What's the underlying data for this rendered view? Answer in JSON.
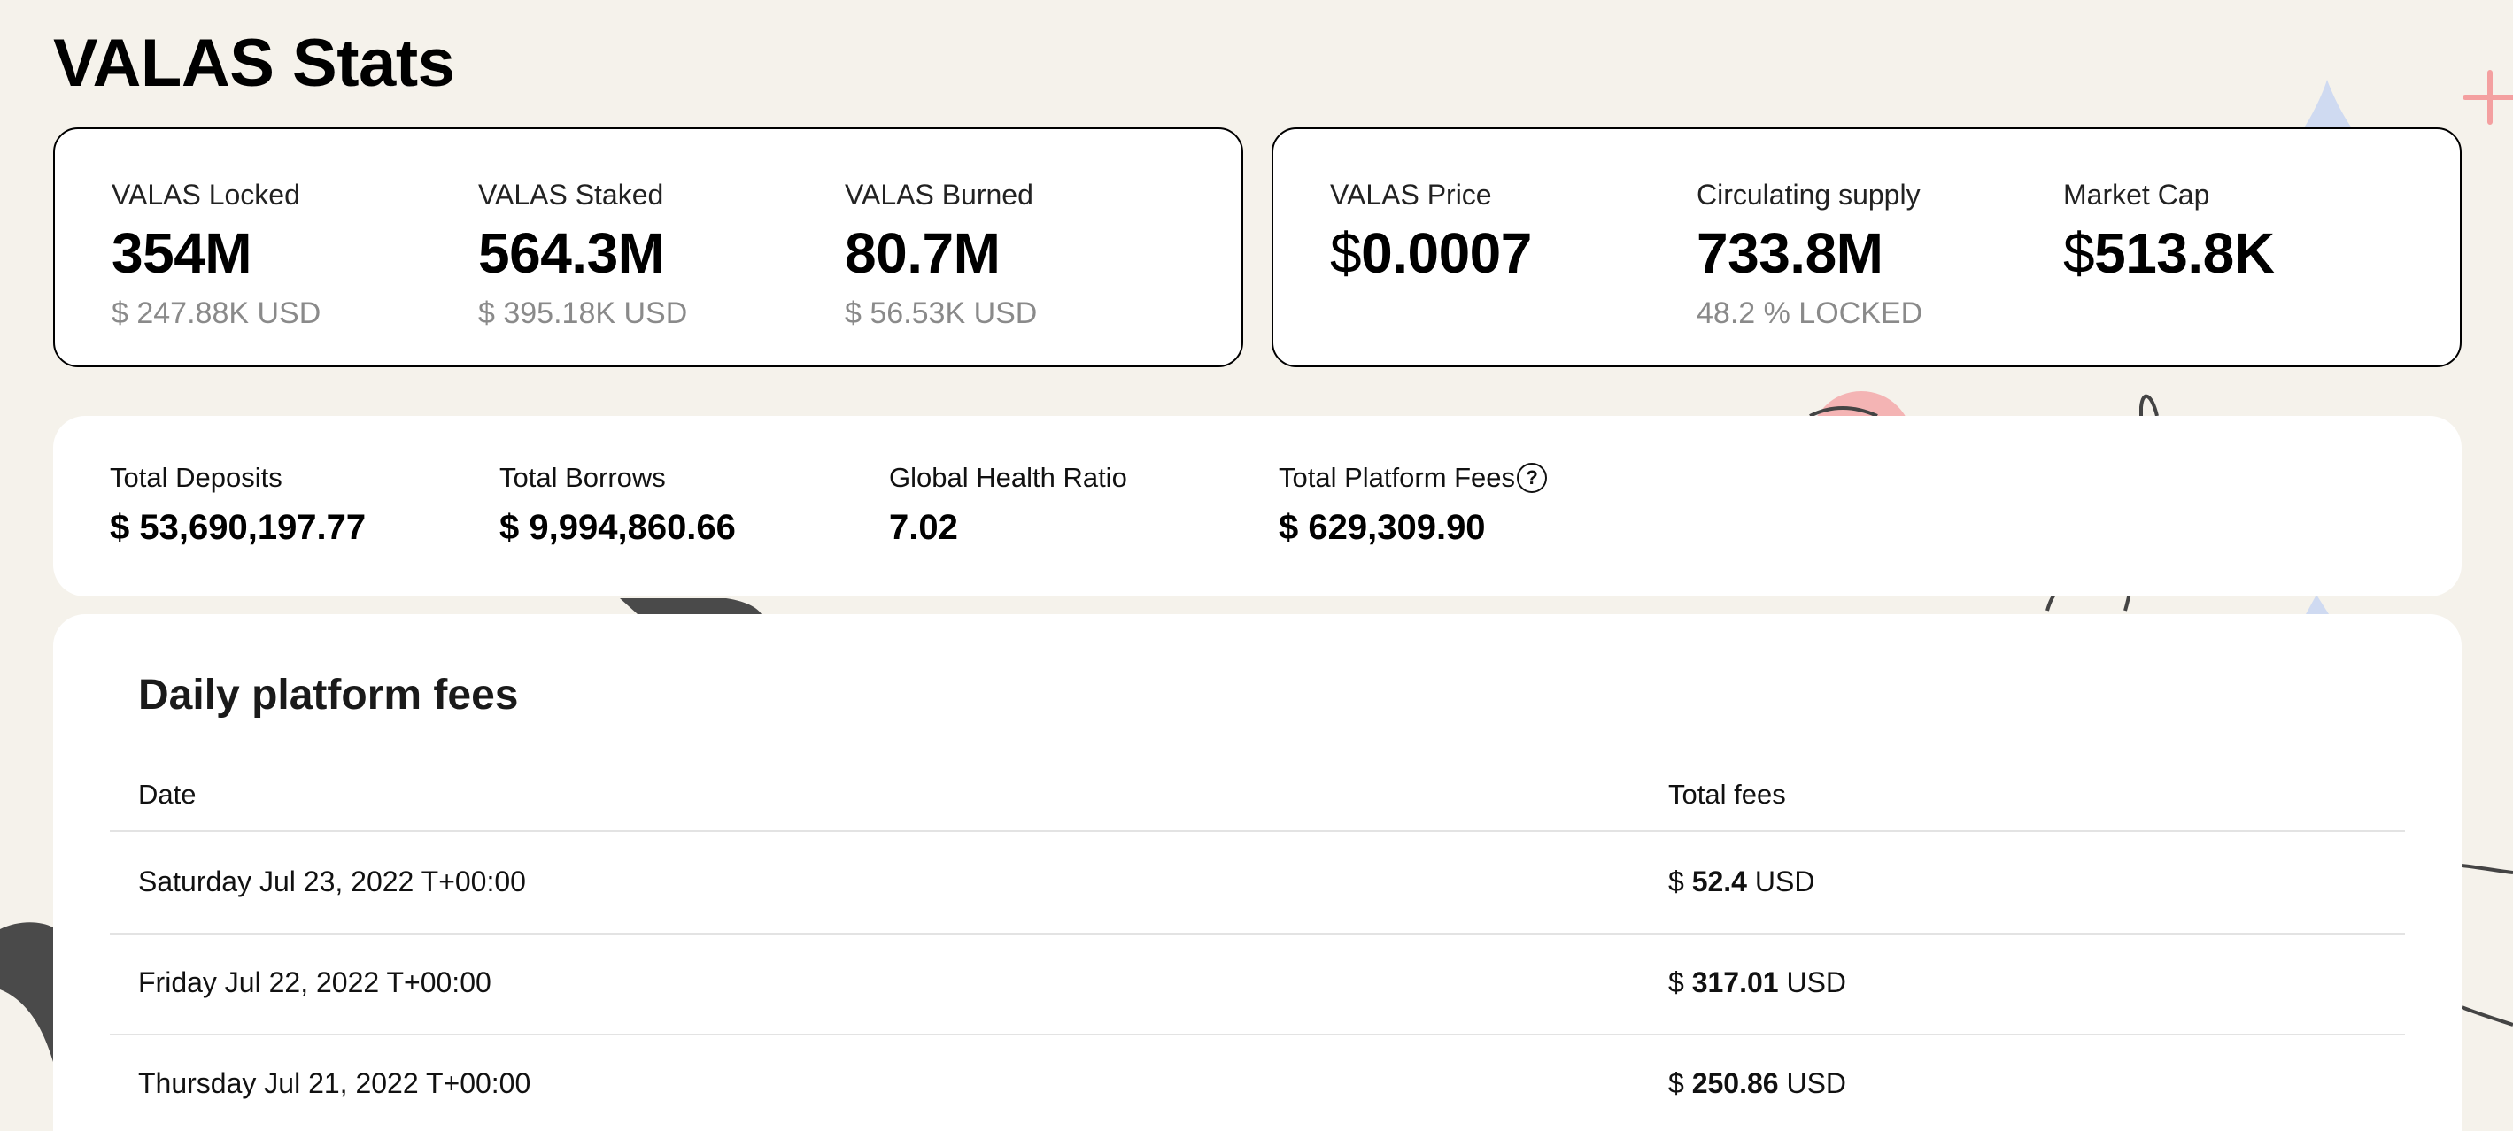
{
  "page": {
    "title": "VALAS Stats"
  },
  "token_card": {
    "stats": [
      {
        "label": "VALAS Locked",
        "value": "354M",
        "sub": "$ 247.88K USD"
      },
      {
        "label": "VALAS Staked",
        "value": "564.3M",
        "sub": "$ 395.18K USD"
      },
      {
        "label": "VALAS Burned",
        "value": "80.7M",
        "sub": "$ 56.53K USD"
      }
    ]
  },
  "market_card": {
    "price": {
      "label": "VALAS Price",
      "currency": "$",
      "value": "0.0007"
    },
    "supply": {
      "label": "Circulating supply",
      "value": "733.8M",
      "sub": "48.2 % LOCKED"
    },
    "market_cap": {
      "label": "Market Cap",
      "currency": "$",
      "value": "513.8K"
    }
  },
  "totals": [
    {
      "label": "Total Deposits",
      "value": "$ 53,690,197.77"
    },
    {
      "label": "Total Borrows",
      "value": "$ 9,994,860.66"
    },
    {
      "label": "Global Health Ratio",
      "value": "7.02"
    },
    {
      "label": "Total Platform Fees",
      "value": "$ 629,309.90",
      "icon": "help-circle-icon"
    }
  ],
  "fees_table": {
    "title": "Daily platform fees",
    "columns": [
      "Date",
      "Total fees"
    ],
    "rows": [
      {
        "date": "Saturday Jul 23, 2022 T+00:00",
        "prefix": "$",
        "amount": "52.4",
        "unit": "USD"
      },
      {
        "date": "Friday Jul 22, 2022 T+00:00",
        "prefix": "$",
        "amount": "317.01",
        "unit": "USD"
      },
      {
        "date": "Thursday Jul 21, 2022 T+00:00",
        "prefix": "$",
        "amount": "250.86",
        "unit": "USD"
      }
    ]
  },
  "colors": {
    "background": "#f5f2eb",
    "card": "#ffffff",
    "muted_text": "#8a8a8a",
    "accent_pink": "#f4a0a0",
    "accent_blue": "#c9d6f0"
  },
  "help_glyph": "?"
}
